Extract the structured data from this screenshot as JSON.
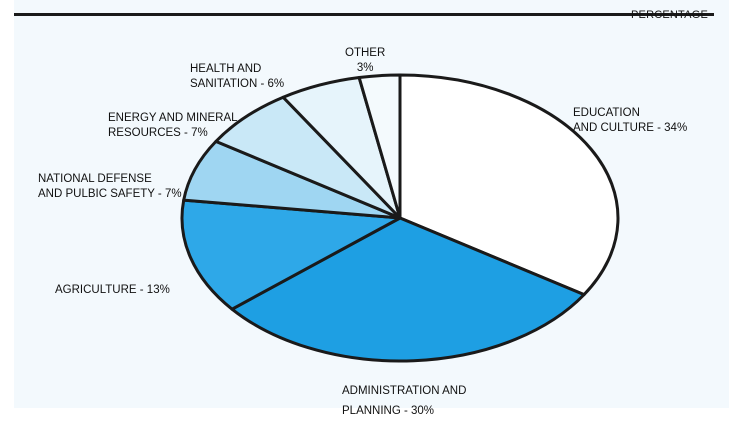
{
  "header": {
    "unit_label": "PERCENTAGE"
  },
  "colors": {
    "edge": "#1a1a1a",
    "page": "#f3f9fd"
  },
  "chart_data": {
    "type": "pie",
    "title": "",
    "start": "top, clockwise",
    "slices": [
      {
        "lines": [
          "EDUCATION",
          "AND CULTURE - 34%"
        ],
        "value": 34,
        "color": "#ffffff"
      },
      {
        "lines": [
          "ADMINISTRATION AND",
          "PLANNING - 30%"
        ],
        "value": 30,
        "color": "#1e9fe3"
      },
      {
        "lines": [
          "AGRICULTURE - 13%"
        ],
        "value": 13,
        "color": "#2ea8e8"
      },
      {
        "lines": [
          "NATIONAL DEFENSE",
          "AND PULBIC SAFETY - 7%"
        ],
        "value": 7,
        "color": "#9fd6f2"
      },
      {
        "lines": [
          "ENERGY AND MINERAL",
          "RESOURCES - 7%"
        ],
        "value": 7,
        "color": "#c9e8f7"
      },
      {
        "lines": [
          "HEALTH AND",
          "SANITATION - 6%"
        ],
        "value": 6,
        "color": "#e6f4fb"
      },
      {
        "lines": [
          "OTHER",
          "3%"
        ],
        "value": 3,
        "color": "#f4fafd"
      }
    ]
  }
}
